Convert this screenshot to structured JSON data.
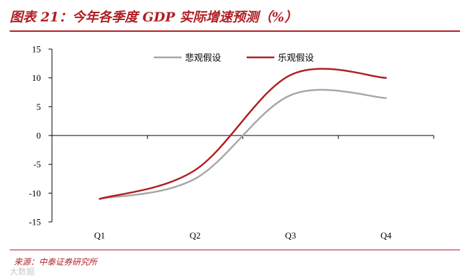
{
  "figure": {
    "title": "图表 21：今年各季度 GDP 实际增速预测（%）",
    "source": "来源：中泰证券研究所",
    "watermark": "大数据"
  },
  "chart_data": {
    "type": "line",
    "categories": [
      "Q1",
      "Q2",
      "Q3",
      "Q4"
    ],
    "series": [
      {
        "name": "悲观假设",
        "color": "#a6a6a6",
        "values": [
          -11,
          -7.5,
          7,
          6.5
        ]
      },
      {
        "name": "乐观假设",
        "color": "#b01e23",
        "values": [
          -11,
          -6,
          10.5,
          10
        ]
      }
    ],
    "yticks": [
      15,
      10,
      5,
      0,
      -5,
      -10,
      -15
    ],
    "ylim": [
      -15,
      15
    ],
    "grid": false,
    "legend_position": "top-center"
  }
}
